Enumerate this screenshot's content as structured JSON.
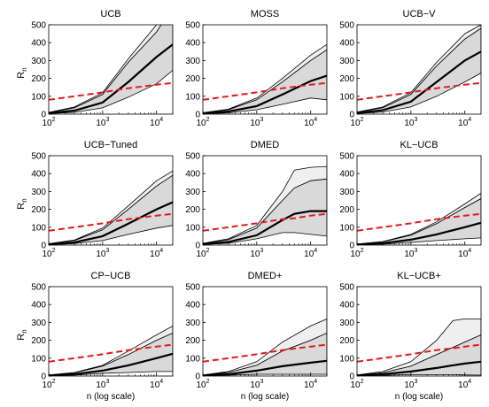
{
  "figure": {
    "ylabel_main": "R",
    "ylabel_sub": "n",
    "xlabel": "n (log scale)",
    "x_tick_base": "10",
    "colors": {
      "mean": "#000000",
      "band": "#d9d9d9",
      "outer_band": "#efefef",
      "bound": "#e41a1c",
      "axis": "#000000"
    }
  },
  "chart_data": [
    {
      "type": "area",
      "title": "UCB",
      "xscale": "log",
      "xlim": [
        100,
        20000
      ],
      "ylim": [
        0,
        500
      ],
      "yticks": [
        0,
        100,
        200,
        300,
        400,
        500
      ],
      "xtick_exponents": [
        "2",
        "3",
        "4"
      ],
      "x": [
        100,
        300,
        1000,
        3000,
        10000,
        20000
      ],
      "mean": [
        5,
        20,
        65,
        180,
        320,
        390
      ],
      "lower": [
        3,
        10,
        35,
        95,
        170,
        245
      ],
      "upper": [
        8,
        35,
        110,
        290,
        460,
        600
      ],
      "outer_upper": [
        10,
        40,
        120,
        310,
        500,
        650
      ],
      "bound": [
        80,
        100,
        122,
        145,
        165,
        175
      ]
    },
    {
      "type": "area",
      "title": "MOSS",
      "xscale": "log",
      "xlim": [
        100,
        20000
      ],
      "ylim": [
        0,
        500
      ],
      "yticks": [
        0,
        100,
        200,
        300,
        400,
        500
      ],
      "xtick_exponents": [
        "2",
        "3",
        "4"
      ],
      "x": [
        100,
        300,
        1000,
        3000,
        10000,
        20000
      ],
      "mean": [
        4,
        15,
        45,
        110,
        185,
        215
      ],
      "lower": [
        2,
        7,
        25,
        55,
        90,
        80
      ],
      "upper": [
        7,
        25,
        80,
        180,
        300,
        360
      ],
      "outer_upper": [
        8,
        28,
        90,
        200,
        330,
        390
      ],
      "bound": [
        80,
        100,
        122,
        145,
        165,
        175
      ]
    },
    {
      "type": "area",
      "title": "UCB−V",
      "xscale": "log",
      "xlim": [
        100,
        20000
      ],
      "ylim": [
        0,
        500
      ],
      "yticks": [
        0,
        100,
        200,
        300,
        400,
        500
      ],
      "xtick_exponents": [
        "2",
        "3",
        "4"
      ],
      "x": [
        100,
        300,
        1000,
        3000,
        10000,
        20000
      ],
      "mean": [
        6,
        22,
        70,
        180,
        300,
        350
      ],
      "lower": [
        3,
        12,
        40,
        100,
        180,
        230
      ],
      "upper": [
        10,
        35,
        110,
        270,
        420,
        480
      ],
      "outer_upper": [
        12,
        40,
        120,
        290,
        450,
        500
      ],
      "bound": [
        80,
        100,
        122,
        145,
        165,
        175
      ]
    },
    {
      "type": "area",
      "title": "UCB−Tuned",
      "xscale": "log",
      "xlim": [
        100,
        20000
      ],
      "ylim": [
        0,
        500
      ],
      "yticks": [
        0,
        100,
        200,
        300,
        400,
        500
      ],
      "xtick_exponents": [
        "2",
        "3",
        "4"
      ],
      "x": [
        100,
        300,
        1000,
        3000,
        10000,
        20000
      ],
      "mean": [
        4,
        15,
        50,
        120,
        200,
        240
      ],
      "lower": [
        2,
        8,
        25,
        60,
        95,
        110
      ],
      "upper": [
        7,
        25,
        85,
        200,
        330,
        390
      ],
      "outer_upper": [
        8,
        28,
        95,
        220,
        360,
        415
      ],
      "bound": [
        80,
        100,
        122,
        145,
        165,
        175
      ]
    },
    {
      "type": "area",
      "title": "DMED",
      "xscale": "log",
      "xlim": [
        100,
        20000
      ],
      "ylim": [
        0,
        500
      ],
      "yticks": [
        0,
        100,
        200,
        300,
        400,
        500
      ],
      "xtick_exponents": [
        "2",
        "3",
        "4"
      ],
      "x": [
        100,
        300,
        1000,
        3000,
        5000,
        10000,
        20000
      ],
      "mean": [
        5,
        18,
        55,
        140,
        175,
        190,
        190
      ],
      "lower": [
        3,
        10,
        35,
        70,
        70,
        60,
        50
      ],
      "upper": [
        8,
        30,
        95,
        250,
        320,
        360,
        370
      ],
      "outer_upper": [
        10,
        35,
        110,
        300,
        420,
        435,
        440
      ],
      "bound": [
        80,
        100,
        122,
        145,
        150,
        165,
        175
      ]
    },
    {
      "type": "area",
      "title": "KL−UCB",
      "xscale": "log",
      "xlim": [
        100,
        20000
      ],
      "ylim": [
        0,
        500
      ],
      "yticks": [
        0,
        100,
        200,
        300,
        400,
        500
      ],
      "xtick_exponents": [
        "2",
        "3",
        "4"
      ],
      "x": [
        100,
        300,
        1000,
        3000,
        10000,
        20000
      ],
      "mean": [
        3,
        10,
        30,
        60,
        100,
        125
      ],
      "lower": [
        2,
        5,
        15,
        25,
        35,
        40
      ],
      "upper": [
        5,
        18,
        55,
        120,
        210,
        260
      ],
      "outer_upper": [
        6,
        20,
        60,
        130,
        230,
        290
      ],
      "bound": [
        80,
        100,
        122,
        145,
        165,
        175
      ]
    },
    {
      "type": "area",
      "title": "CP−UCB",
      "xscale": "log",
      "xlim": [
        100,
        20000
      ],
      "ylim": [
        0,
        500
      ],
      "yticks": [
        0,
        100,
        200,
        300,
        400,
        500
      ],
      "xtick_exponents": [
        "2",
        "3",
        "4"
      ],
      "x": [
        100,
        300,
        1000,
        3000,
        10000,
        20000
      ],
      "mean": [
        3,
        10,
        30,
        60,
        100,
        125
      ],
      "lower": [
        2,
        5,
        15,
        20,
        25,
        25
      ],
      "upper": [
        5,
        18,
        55,
        120,
        200,
        240
      ],
      "outer_upper": [
        6,
        20,
        60,
        140,
        230,
        280
      ],
      "bound": [
        80,
        100,
        122,
        145,
        165,
        175
      ]
    },
    {
      "type": "area",
      "title": "DMED+",
      "xscale": "log",
      "xlim": [
        100,
        20000
      ],
      "ylim": [
        0,
        500
      ],
      "yticks": [
        0,
        100,
        200,
        300,
        400,
        500
      ],
      "xtick_exponents": [
        "2",
        "3",
        "4"
      ],
      "x": [
        100,
        300,
        1000,
        3000,
        10000,
        20000
      ],
      "mean": [
        3,
        10,
        30,
        55,
        75,
        85
      ],
      "lower": [
        2,
        5,
        10,
        10,
        10,
        10
      ],
      "upper": [
        5,
        20,
        60,
        140,
        200,
        240
      ],
      "outer_upper": [
        6,
        25,
        80,
        190,
        280,
        320
      ],
      "bound": [
        80,
        100,
        122,
        145,
        165,
        175
      ]
    },
    {
      "type": "area",
      "title": "KL−UCB+",
      "xscale": "log",
      "xlim": [
        100,
        20000
      ],
      "ylim": [
        0,
        500
      ],
      "yticks": [
        0,
        100,
        200,
        300,
        400,
        500
      ],
      "xtick_exponents": [
        "2",
        "3",
        "4"
      ],
      "x": [
        100,
        300,
        1000,
        3000,
        6000,
        10000,
        20000
      ],
      "mean": [
        3,
        10,
        25,
        45,
        60,
        70,
        80
      ],
      "lower": [
        2,
        4,
        8,
        8,
        8,
        6,
        5
      ],
      "upper": [
        5,
        18,
        55,
        120,
        160,
        190,
        230
      ],
      "outer_upper": [
        6,
        25,
        80,
        200,
        310,
        320,
        320
      ],
      "bound": [
        80,
        100,
        122,
        145,
        155,
        165,
        175
      ]
    }
  ]
}
